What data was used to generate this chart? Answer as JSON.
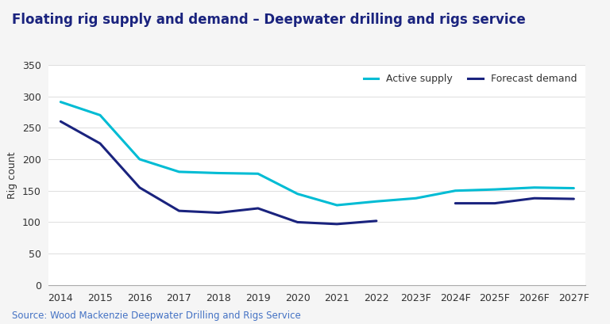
{
  "title": "Floating rig supply and demand – Deepwater drilling and rigs service",
  "ylabel": "Rig count",
  "source": "Source: Wood Mackenzie Deepwater Drilling and Rigs Service",
  "categories": [
    "2014",
    "2015",
    "2016",
    "2017",
    "2018",
    "2019",
    "2020",
    "2021",
    "2022",
    "2023F",
    "2024F",
    "2025F",
    "2026F",
    "2027F"
  ],
  "active_supply": [
    291,
    270,
    200,
    180,
    178,
    177,
    145,
    127,
    133,
    138,
    150,
    152,
    155,
    154
  ],
  "forecast_demand": [
    260,
    225,
    155,
    118,
    115,
    122,
    100,
    97,
    102,
    null,
    130,
    130,
    138,
    137
  ],
  "supply_color": "#00bcd4",
  "demand_color": "#1a237e",
  "background_color": "#f5f5f5",
  "plot_background": "#ffffff",
  "ylim": [
    0,
    350
  ],
  "yticks": [
    0,
    50,
    100,
    150,
    200,
    250,
    300,
    350
  ],
  "legend_labels": [
    "Active supply",
    "Forecast demand"
  ],
  "title_fontsize": 12,
  "axis_fontsize": 9,
  "source_fontsize": 8.5,
  "source_color": "#4472c4",
  "title_color": "#1a237e"
}
